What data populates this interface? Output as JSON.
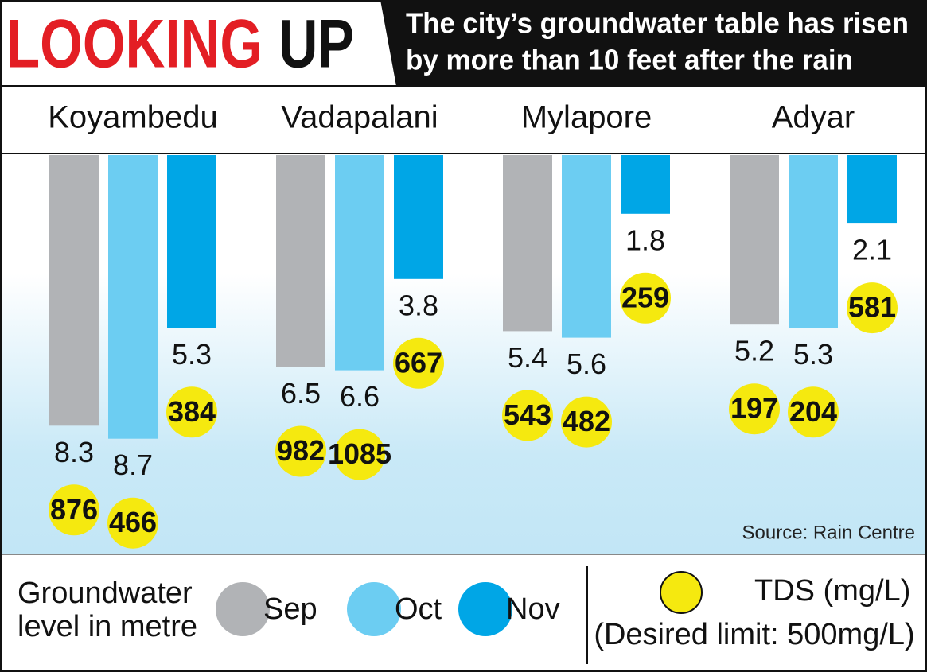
{
  "chart_data": {
    "type": "bar",
    "title": [
      "LOOKING",
      "UP"
    ],
    "subtitle": [
      "The city’s groundwater table has risen",
      "by more than 10 feet after the rain"
    ],
    "categories": [
      "Koyambedu",
      "Vadapalani",
      "Mylapore",
      "Adyar"
    ],
    "series": [
      {
        "name": "Sep",
        "color": "#b1b3b6",
        "values": [
          8.3,
          6.5,
          5.4,
          5.2
        ],
        "tds": [
          876,
          982,
          543,
          197
        ]
      },
      {
        "name": "Oct",
        "color": "#6ccdf2",
        "values": [
          8.7,
          6.6,
          5.6,
          5.3
        ],
        "tds": [
          466,
          1085,
          482,
          204
        ]
      },
      {
        "name": "Nov",
        "color": "#00a6e6",
        "values": [
          5.3,
          3.8,
          1.8,
          2.1
        ],
        "tds": [
          384,
          667,
          259,
          581
        ]
      }
    ],
    "legend_title": [
      "Groundwater",
      "level in metre"
    ],
    "tds_name": "TDS (mg/L)",
    "tds_note": "(Desired limit: 500mg/L)",
    "tds_color": "#f5e90f",
    "source": "Source: Rain Centre"
  }
}
